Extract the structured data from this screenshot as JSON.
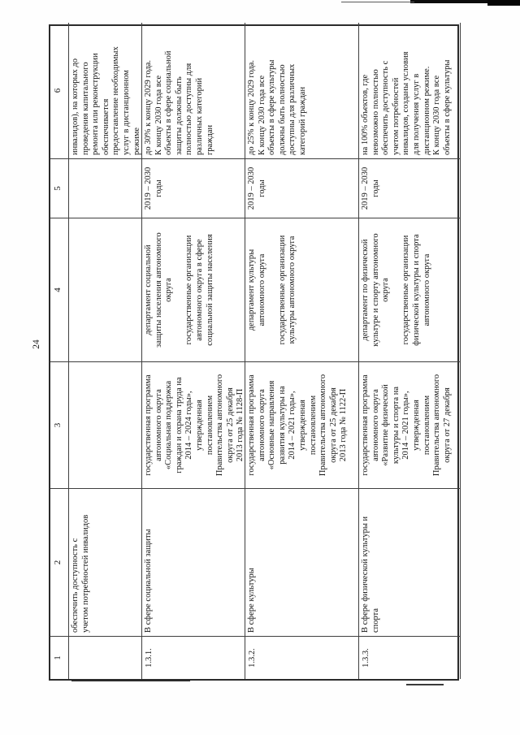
{
  "page": {
    "number": "24"
  },
  "colors": {
    "paper": "#ffffff",
    "ink": "#151515",
    "grid_line": "#3f3f3f",
    "artifact": "#0c0c0c"
  },
  "table": {
    "header_numbers": [
      "1",
      "2",
      "3",
      "4",
      "5",
      "6"
    ],
    "rows": [
      {
        "id": "",
        "c2": "обеспечить доступность с\nучетом потребностей инвалидов",
        "c3": "",
        "c4": "",
        "c5": "",
        "c6": "инвалидов), на которых до\nпроведения капитального\nремонта или реконструкции\nобеспечивается\nпредоставление необходимых\nуслуг в дистанционном\nрежиме"
      },
      {
        "id": "1.3.1.",
        "c2": "В сфере социальной защиты",
        "c3": "государственная программа\nавтономного округа\n«Социальная поддержка\nграждан и охрана труда на\n2014 – 2024 годы»,\nутвержденная\nпостановлением\nПравительства автономного\nокруга от 25 декабря\n2013 года № 1128-П",
        "c4": "департамент социальной\nзащиты населения автономного\nокруга\n\nгосударственные организации\nавтономного округа в сфере\nсоциальной защиты населения",
        "c5": "2019 – 2030\nгоды",
        "c6": "до 30% к концу 2029 года.\nК концу 2030 года все\nобъекты в сфере социальной\nзащиты должны быть\nполностью доступны для\nразличных категорий\nграждан"
      },
      {
        "id": "1.3.2.",
        "c2": "В сфере культуры",
        "c3": "государственная программа\nавтономного округа\n«Основные направления\nразвития культуры на\n2014 – 2021 годы»,\nутвержденная\nпостановлением\nПравительства автономного\nокруга от 25 декабря\n2013 года № 1122-П",
        "c4": "департамент культуры\nавтономного округа\n\nгосударственные организации\nкультуры автономного округа",
        "c5": "2019 – 2030\nгоды",
        "c6": "до 25% к концу 2029 года.\nК концу 2030 года все\nобъекты в сфере культуры\nдолжны быть полностью\nдоступны для различных\nкатегорий граждан"
      },
      {
        "id": "1.3.3.",
        "c2": "В сфере физической культуры и\nспорта",
        "c3": "государственная программа\nавтономного округа\n«Развитие физической\nкультуры и спорта на\n2014 – 2021 годы»,\nутвержденная\nпостановлением\nПравительства автономного\nокруга от 27 декабря",
        "c4": "департамент по физической\nкультуре и спорту автономного\nокруга\n\nгосударственные организации\nфизической культуры и спорта\nавтономного округа",
        "c5": "2019 – 2030\nгоды",
        "c6": "на 100% объектов, где\nневозможно полностью\nобеспечить доступность с\nучетом потребностей\nинвалидов, созданы условия\nдля получения услуг в\nдистанционном режиме.\nК концу 2030 года все\nобъекты в сфере культуры"
      }
    ]
  }
}
